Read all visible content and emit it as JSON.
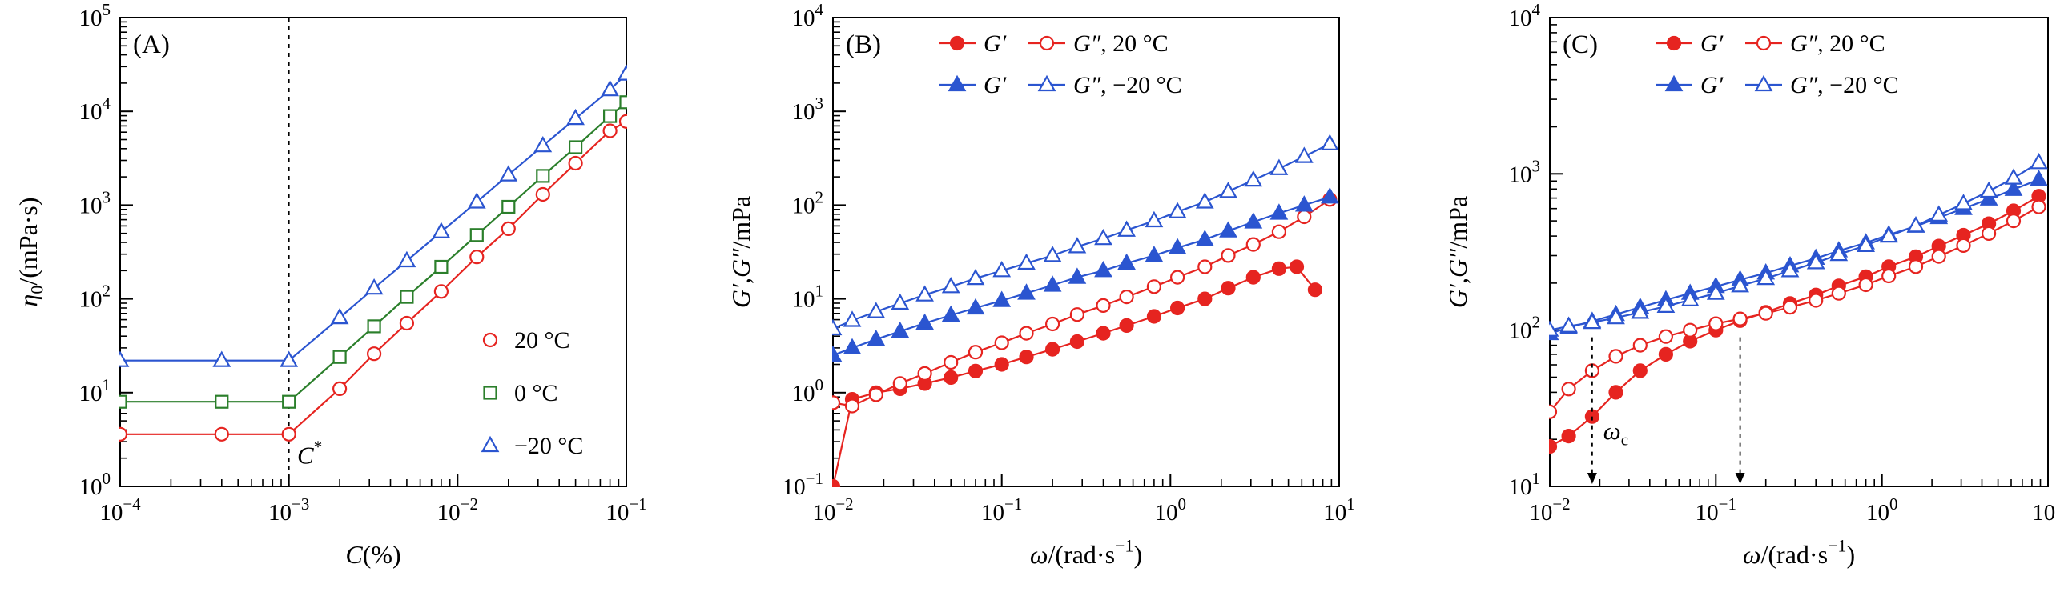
{
  "figure": {
    "background": "#ffffff",
    "frame_color": "#000000"
  },
  "chart_data": [
    {
      "type": "line",
      "panel_label": "(A)",
      "xscale": "log",
      "yscale": "log",
      "xlim_exp": [
        -4,
        -1
      ],
      "ylim_exp": [
        0,
        5
      ],
      "xlabel": [
        {
          "t": "C",
          "i": true
        },
        {
          "t": "(%)"
        }
      ],
      "ylabel": [
        {
          "t": "η",
          "i": true
        },
        {
          "t": "0",
          "sub": true
        },
        {
          "t": "/(mPa·s)"
        }
      ],
      "series": [
        {
          "name": "20 °C",
          "color": "#e62420",
          "marker": "circle",
          "filled": false,
          "x": [
            0.0001,
            0.0004,
            0.001,
            0.002,
            0.0032,
            0.005,
            0.008,
            0.013,
            0.02,
            0.032,
            0.05,
            0.08,
            0.1
          ],
          "y": [
            3.6,
            3.6,
            3.6,
            11,
            26,
            55,
            120,
            280,
            560,
            1300,
            2800,
            6200,
            7800
          ]
        },
        {
          "name": "0 °C",
          "color": "#2b7f2b",
          "marker": "square",
          "filled": false,
          "x": [
            0.0001,
            0.0004,
            0.001,
            0.002,
            0.0032,
            0.005,
            0.008,
            0.013,
            0.02,
            0.032,
            0.05,
            0.08,
            0.1
          ],
          "y": [
            8,
            8,
            8,
            24,
            51,
            105,
            220,
            480,
            960,
            2050,
            4150,
            8900,
            12500
          ]
        },
        {
          "name": "−20 °C",
          "color": "#2b55d0",
          "marker": "triangle",
          "filled": false,
          "x": [
            0.0001,
            0.0004,
            0.001,
            0.002,
            0.0032,
            0.005,
            0.008,
            0.013,
            0.02,
            0.032,
            0.05,
            0.08,
            0.1
          ],
          "y": [
            22,
            22,
            22,
            63,
            130,
            255,
            520,
            1080,
            2100,
            4300,
            8400,
            17000,
            25000
          ]
        }
      ],
      "legend": {
        "style": "markers",
        "entries": [
          {
            "label": "20 °C",
            "marker": "circle",
            "filled": false,
            "color": "#e62420"
          },
          {
            "label": "0 °C",
            "marker": "square",
            "filled": false,
            "color": "#2b7f2b"
          },
          {
            "label": "−20 °C",
            "marker": "triangle",
            "filled": false,
            "color": "#2b55d0"
          }
        ]
      },
      "annotations": [
        {
          "type": "vline",
          "x": 0.001
        },
        {
          "type": "label",
          "x": 0.00112,
          "y": 1.75,
          "base": "C",
          "sup": "*",
          "italic": true
        }
      ]
    },
    {
      "type": "line",
      "panel_label": "(B)",
      "xscale": "log",
      "yscale": "log",
      "xlim_exp": [
        -2,
        1
      ],
      "ylim_exp": [
        -1,
        4
      ],
      "xlabel": [
        {
          "t": "ω",
          "i": true
        },
        {
          "t": "/(rad·s"
        },
        {
          "t": "−1",
          "sup": true
        },
        {
          "t": ")"
        }
      ],
      "ylabel": [
        {
          "t": "G′",
          "i": true
        },
        {
          "t": ","
        },
        {
          "t": "G″",
          "i": true
        },
        {
          "t": "/mPa"
        }
      ],
      "series": [
        {
          "name": "G′ 20 °C",
          "color": "#e62420",
          "marker": "circle",
          "filled": true,
          "x": [
            0.01,
            0.013,
            0.018,
            0.025,
            0.035,
            0.05,
            0.07,
            0.1,
            0.14,
            0.2,
            0.28,
            0.4,
            0.55,
            0.8,
            1.1,
            1.6,
            2.2,
            3.1,
            4.4,
            5.6,
            7.2
          ],
          "y": [
            0.1,
            0.85,
            1.0,
            1.1,
            1.25,
            1.45,
            1.7,
            2.0,
            2.4,
            2.9,
            3.5,
            4.3,
            5.2,
            6.5,
            8.0,
            10,
            13,
            17,
            21,
            22,
            12.5
          ]
        },
        {
          "name": "G″ 20 °C",
          "color": "#e62420",
          "marker": "circle",
          "filled": false,
          "x": [
            0.01,
            0.013,
            0.018,
            0.025,
            0.035,
            0.05,
            0.07,
            0.1,
            0.14,
            0.2,
            0.28,
            0.4,
            0.55,
            0.8,
            1.1,
            1.6,
            2.2,
            3.1,
            4.4,
            6.2,
            8.8
          ],
          "y": [
            0.78,
            0.72,
            0.95,
            1.25,
            1.6,
            2.1,
            2.7,
            3.4,
            4.3,
            5.4,
            6.8,
            8.5,
            10.5,
            13.5,
            17,
            22,
            29,
            38,
            52,
            75,
            115
          ]
        },
        {
          "name": "G′ −20 °C",
          "color": "#2b55d0",
          "marker": "triangle",
          "filled": true,
          "x": [
            0.01,
            0.013,
            0.018,
            0.025,
            0.035,
            0.05,
            0.07,
            0.1,
            0.14,
            0.2,
            0.28,
            0.4,
            0.55,
            0.8,
            1.1,
            1.6,
            2.2,
            3.1,
            4.4,
            6.2,
            8.8
          ],
          "y": [
            2.5,
            3.0,
            3.7,
            4.5,
            5.5,
            6.7,
            8.0,
            9.6,
            11.5,
            14,
            17,
            20,
            24,
            29,
            35,
            43,
            53,
            66,
            82,
            100,
            122
          ]
        },
        {
          "name": "G″ −20 °C",
          "color": "#2b55d0",
          "marker": "triangle",
          "filled": false,
          "x": [
            0.01,
            0.013,
            0.018,
            0.025,
            0.035,
            0.05,
            0.07,
            0.1,
            0.14,
            0.2,
            0.28,
            0.4,
            0.55,
            0.8,
            1.1,
            1.6,
            2.2,
            3.1,
            4.4,
            6.2,
            8.8
          ],
          "y": [
            4.8,
            5.9,
            7.3,
            9.0,
            11,
            13.5,
            16.5,
            20,
            24,
            29,
            36,
            44,
            54,
            68,
            85,
            108,
            140,
            185,
            245,
            330,
            450
          ]
        }
      ],
      "legend": {
        "style": "rows",
        "rows": [
          {
            "color": "#e62420",
            "marker": "circle",
            "items": [
              {
                "segs": [
                  {
                    "t": "G′",
                    "i": true
                  }
                ]
              },
              {
                "segs": [
                  {
                    "t": "G″",
                    "i": true
                  },
                  {
                    "t": ", 20 °C"
                  }
                ]
              }
            ]
          },
          {
            "color": "#2b55d0",
            "marker": "triangle",
            "items": [
              {
                "segs": [
                  {
                    "t": "G′",
                    "i": true
                  }
                ]
              },
              {
                "segs": [
                  {
                    "t": "G″",
                    "i": true
                  },
                  {
                    "t": ", −20 °C"
                  }
                ]
              }
            ]
          }
        ]
      },
      "annotations": []
    },
    {
      "type": "line",
      "panel_label": "(C)",
      "xscale": "log",
      "yscale": "log",
      "xlim_exp": [
        -2,
        1
      ],
      "ylim_exp": [
        1,
        4
      ],
      "xlabel": [
        {
          "t": "ω",
          "i": true
        },
        {
          "t": "/(rad·s"
        },
        {
          "t": "−1",
          "sup": true
        },
        {
          "t": ")"
        }
      ],
      "ylabel": [
        {
          "t": "G′",
          "i": true
        },
        {
          "t": ","
        },
        {
          "t": "G″",
          "i": true
        },
        {
          "t": "/mPa"
        }
      ],
      "series": [
        {
          "name": "G′ 20 °C",
          "color": "#e62420",
          "marker": "circle",
          "filled": true,
          "x": [
            0.01,
            0.013,
            0.018,
            0.025,
            0.035,
            0.05,
            0.07,
            0.1,
            0.14,
            0.2,
            0.28,
            0.4,
            0.55,
            0.8,
            1.1,
            1.6,
            2.2,
            3.1,
            4.4,
            6.2,
            8.8
          ],
          "y": [
            18,
            21,
            28,
            40,
            55,
            70,
            85,
            100,
            115,
            130,
            148,
            168,
            192,
            220,
            255,
            295,
            345,
            405,
            480,
            580,
            720
          ]
        },
        {
          "name": "G″ 20 °C",
          "color": "#e62420",
          "marker": "circle",
          "filled": false,
          "x": [
            0.01,
            0.013,
            0.018,
            0.025,
            0.035,
            0.05,
            0.07,
            0.1,
            0.14,
            0.2,
            0.28,
            0.4,
            0.55,
            0.8,
            1.1,
            1.6,
            2.2,
            3.1,
            4.4,
            6.2,
            8.8
          ],
          "y": [
            30,
            42,
            55,
            68,
            80,
            91,
            100,
            110,
            118,
            128,
            140,
            155,
            172,
            195,
            222,
            255,
            296,
            348,
            415,
            500,
            615
          ]
        },
        {
          "name": "G′ −20 °C",
          "color": "#2b55d0",
          "marker": "triangle",
          "filled": true,
          "x": [
            0.01,
            0.013,
            0.018,
            0.025,
            0.035,
            0.05,
            0.07,
            0.1,
            0.14,
            0.2,
            0.28,
            0.4,
            0.55,
            0.8,
            1.1,
            1.6,
            2.2,
            3.1,
            4.4,
            6.2,
            8.8
          ],
          "y": [
            95,
            104,
            114,
            126,
            140,
            156,
            172,
            190,
            210,
            232,
            258,
            288,
            322,
            362,
            408,
            462,
            525,
            600,
            690,
            795,
            920
          ]
        },
        {
          "name": "G″ −20 °C",
          "color": "#2b55d0",
          "marker": "triangle",
          "filled": false,
          "x": [
            0.01,
            0.013,
            0.018,
            0.025,
            0.035,
            0.05,
            0.07,
            0.1,
            0.14,
            0.2,
            0.28,
            0.4,
            0.55,
            0.8,
            1.1,
            1.6,
            2.2,
            3.1,
            4.4,
            6.2,
            8.8
          ],
          "y": [
            100,
            106,
            112,
            120,
            130,
            142,
            156,
            172,
            192,
            214,
            240,
            270,
            305,
            348,
            400,
            465,
            545,
            645,
            775,
            940,
            1180
          ]
        }
      ],
      "legend": {
        "style": "rows",
        "rows": [
          {
            "color": "#e62420",
            "marker": "circle",
            "items": [
              {
                "segs": [
                  {
                    "t": "G′",
                    "i": true
                  }
                ]
              },
              {
                "segs": [
                  {
                    "t": "G″",
                    "i": true
                  },
                  {
                    "t": ", 20 °C"
                  }
                ]
              }
            ]
          },
          {
            "color": "#2b55d0",
            "marker": "triangle",
            "items": [
              {
                "segs": [
                  {
                    "t": "G′",
                    "i": true
                  }
                ]
              },
              {
                "segs": [
                  {
                    "t": "G″",
                    "i": true
                  },
                  {
                    "t": ", −20 °C"
                  }
                ]
              }
            ]
          }
        ]
      },
      "annotations": [
        {
          "type": "arrow",
          "x": 0.018,
          "y_from": 90
        },
        {
          "type": "arrow",
          "x": 0.14,
          "y_from": 90
        },
        {
          "type": "label",
          "x": 0.021,
          "y": 20,
          "base": "ω",
          "sub": "c",
          "italic": true
        }
      ]
    }
  ]
}
